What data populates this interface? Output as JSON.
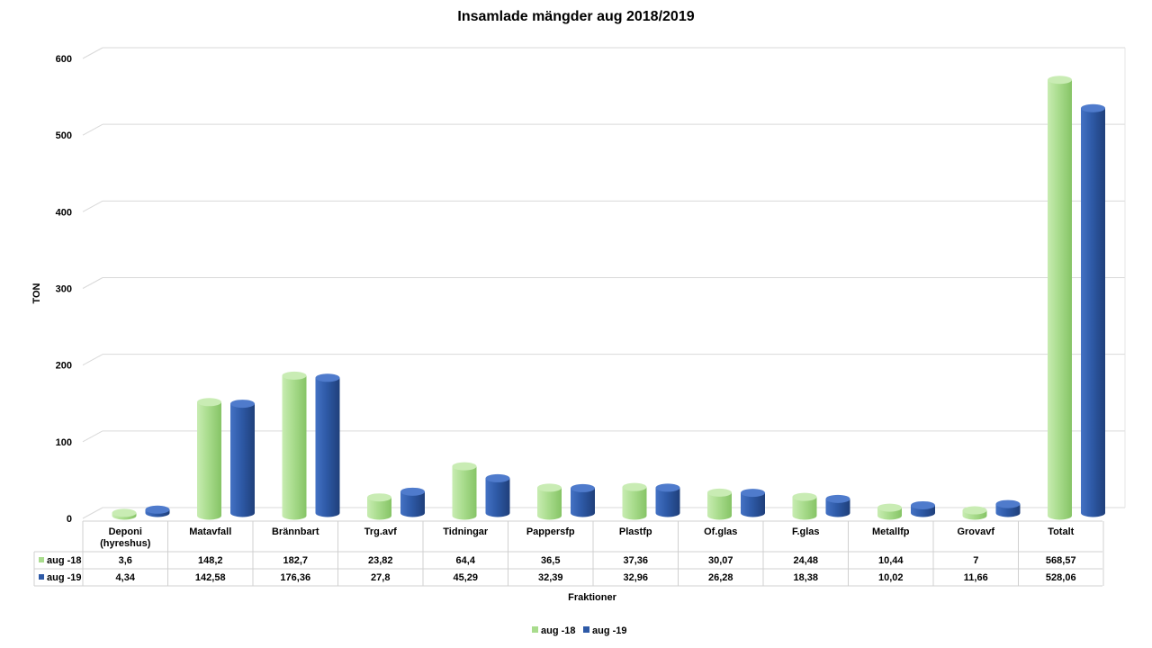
{
  "chart_data": {
    "type": "bar",
    "title": "Insamlade mängder aug 2018/2019",
    "ylabel": "TON",
    "xlabel": "Fraktioner",
    "ylim": [
      0,
      600
    ],
    "yticks": [
      "0",
      "100",
      "200",
      "300",
      "400",
      "500",
      "600"
    ],
    "grid": true,
    "legend_position": "bottom",
    "categories": [
      "Deponi (hyreshus)",
      "Matavfall",
      "Brännbart",
      "Trg.avf",
      "Tidningar",
      "Pappersfp",
      "Plastfp",
      "Of.glas",
      "F.glas",
      "Metallfp",
      "Grovavf",
      "Totalt"
    ],
    "series": [
      {
        "name": "aug -18",
        "color": "#a9dc8d",
        "values": [
          3.6,
          148.2,
          182.7,
          23.82,
          64.4,
          36.5,
          37.36,
          30.07,
          24.48,
          10.44,
          7,
          568.57
        ],
        "labels": [
          "3,6",
          "148,2",
          "182,7",
          "23,82",
          "64,4",
          "36,5",
          "37,36",
          "30,07",
          "24,48",
          "10,44",
          "7",
          "568,57"
        ]
      },
      {
        "name": "aug -19",
        "color": "#2e5aa7",
        "values": [
          4.34,
          142.58,
          176.36,
          27.8,
          45.29,
          32.39,
          32.96,
          26.28,
          18.38,
          10.02,
          11.66,
          528.06
        ],
        "labels": [
          "4,34",
          "142,58",
          "176,36",
          "27,8",
          "45,29",
          "32,39",
          "32,96",
          "26,28",
          "18,38",
          "10,02",
          "11,66",
          "528,06"
        ]
      }
    ]
  }
}
